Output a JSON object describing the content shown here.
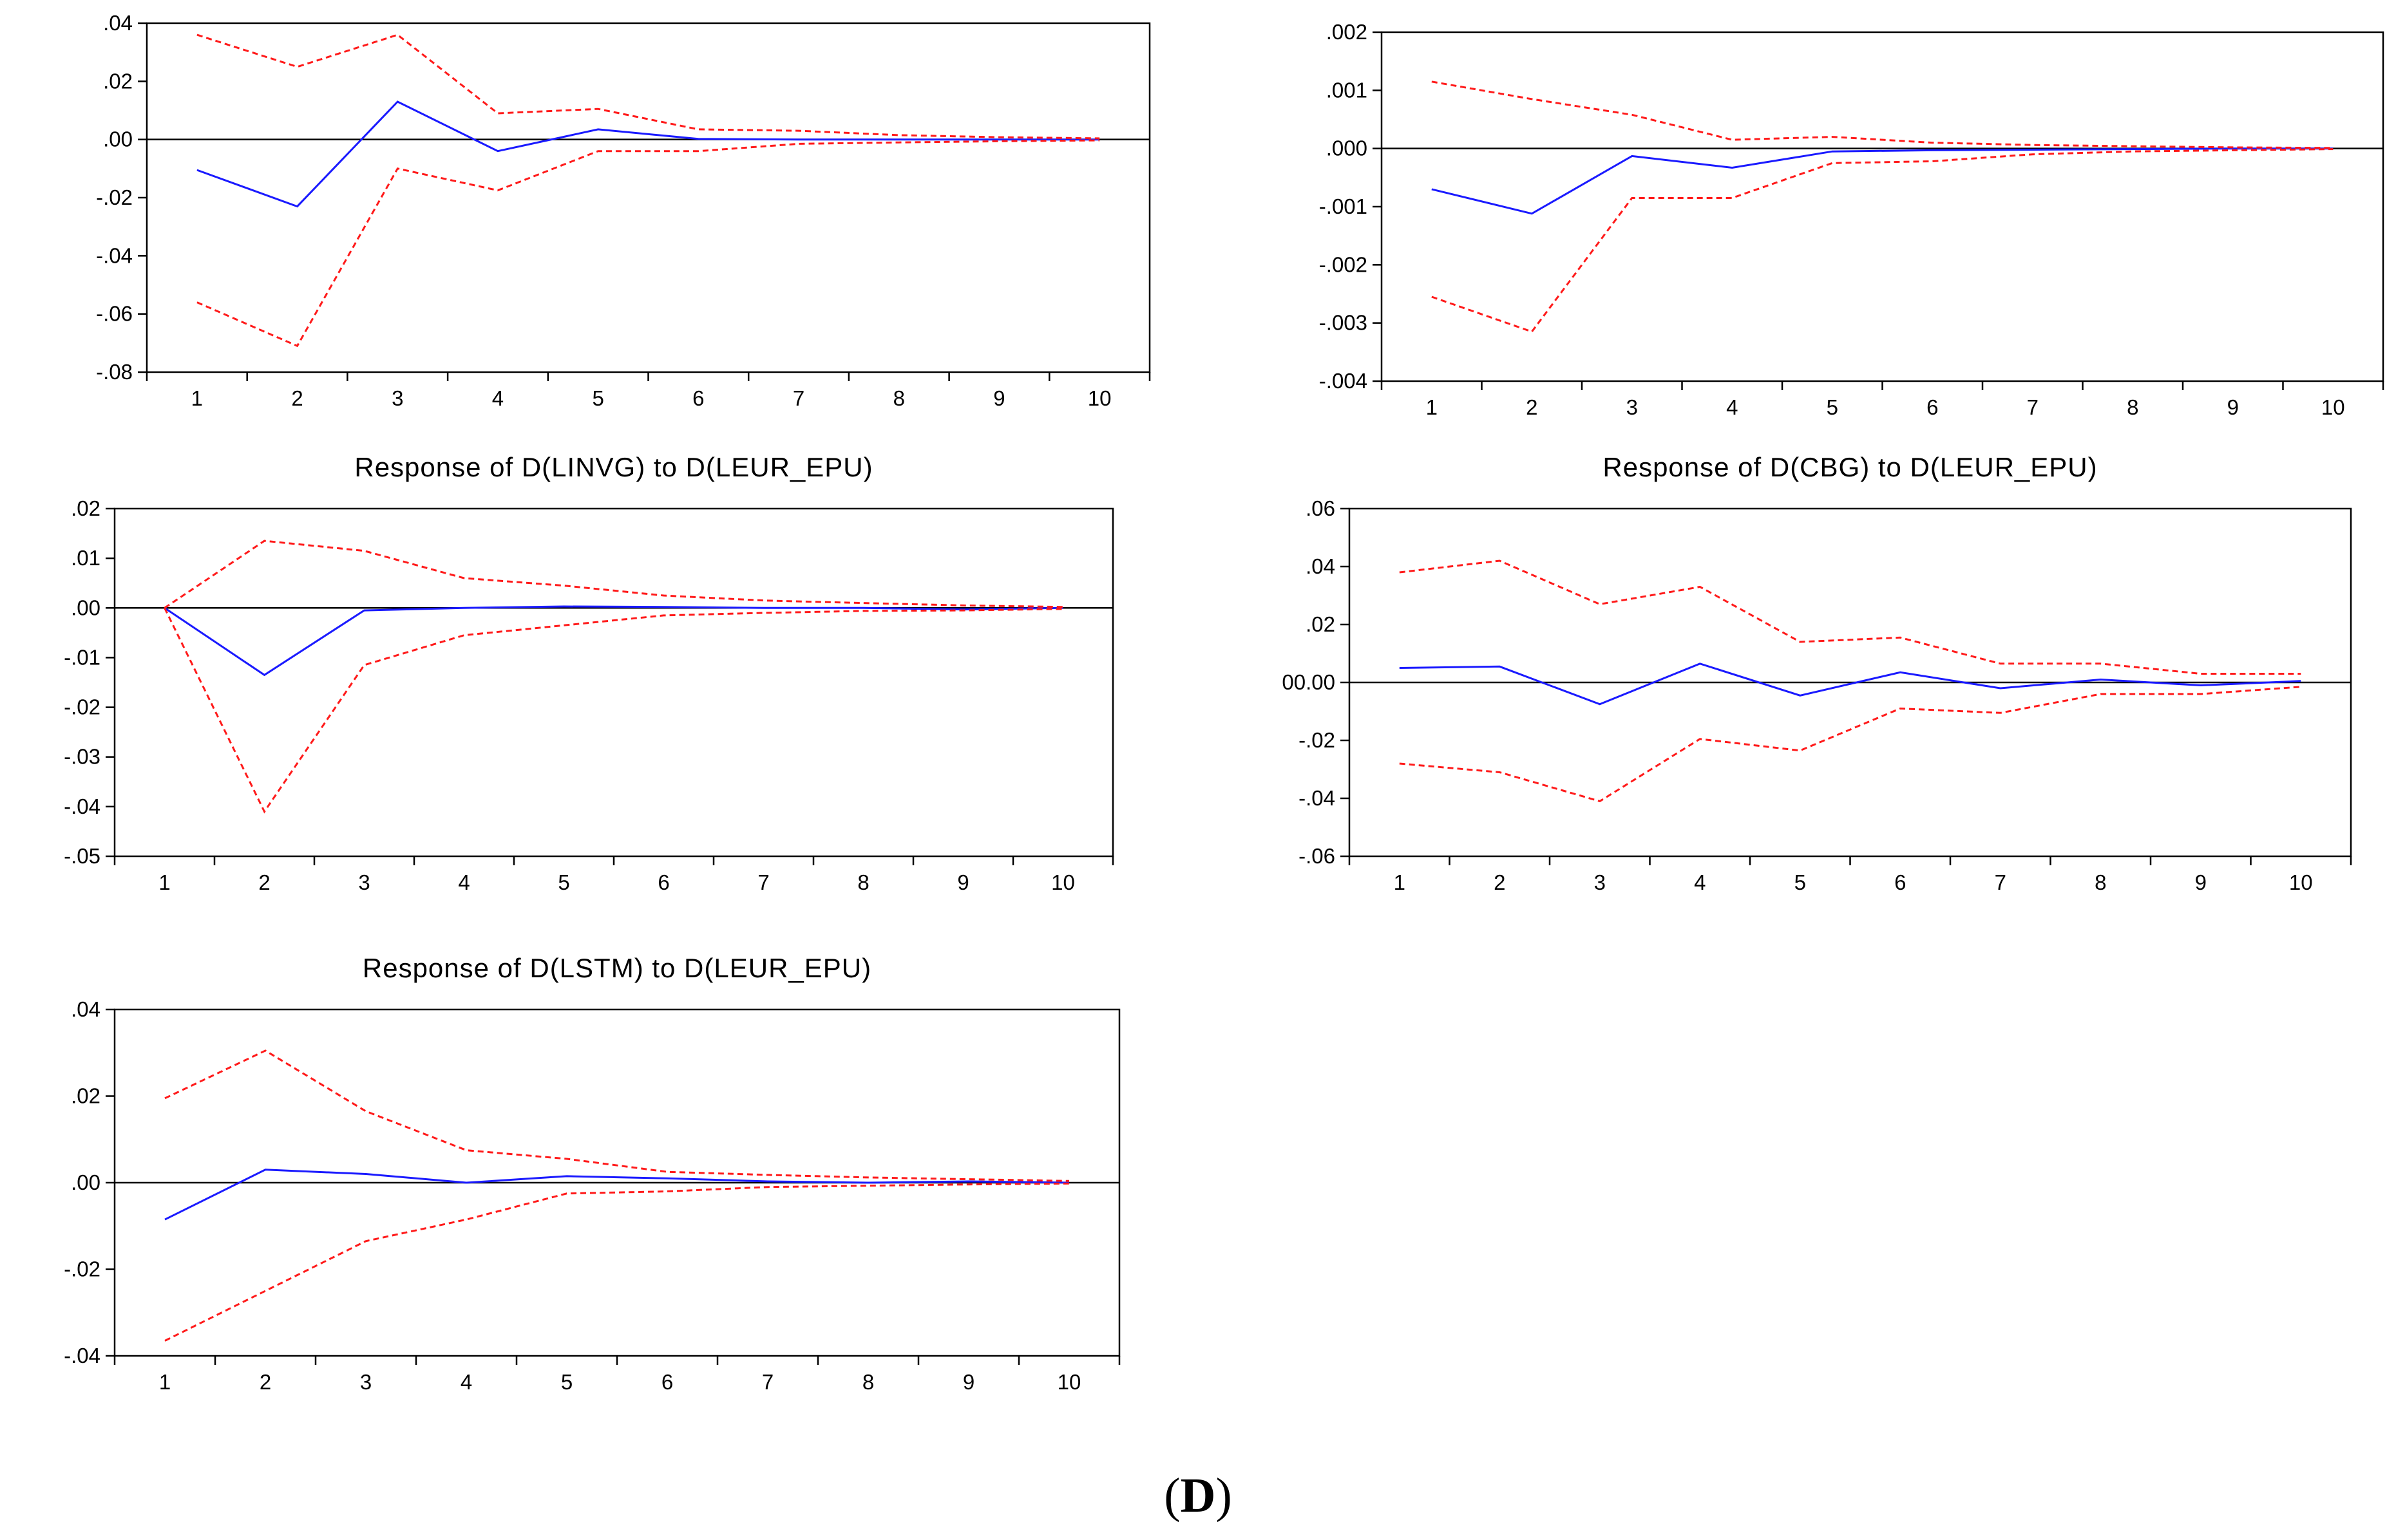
{
  "figure": {
    "label_open": "(",
    "label_letter": "D",
    "label_close": ")"
  },
  "colors": {
    "response": "#1a1aff",
    "band": "#ff1a1a",
    "axis": "#000000"
  },
  "chart_data": [
    {
      "id": "p1",
      "type": "line",
      "title": "",
      "x": [
        1,
        2,
        3,
        4,
        5,
        6,
        7,
        8,
        9,
        10
      ],
      "yticks": [
        ".04",
        ".02",
        ".00",
        "-.02",
        "-.04",
        "-.06",
        "-.08"
      ],
      "ylim": [
        -0.08,
        0.04
      ],
      "series": [
        {
          "name": "response",
          "style": "solid",
          "values": [
            -0.0105,
            -0.023,
            0.013,
            -0.004,
            0.0035,
            0.0002,
            0.0,
            0.0,
            0.0,
            0.0
          ]
        },
        {
          "name": "upper",
          "style": "dashed",
          "values": [
            0.036,
            0.025,
            0.036,
            0.009,
            0.0105,
            0.0035,
            0.003,
            0.0015,
            0.0008,
            0.0004
          ]
        },
        {
          "name": "lower",
          "style": "dashed",
          "values": [
            -0.056,
            -0.071,
            -0.01,
            -0.0175,
            -0.004,
            -0.004,
            -0.0015,
            -0.001,
            -0.0006,
            -0.0003
          ]
        }
      ]
    },
    {
      "id": "p2",
      "type": "line",
      "title": "",
      "x": [
        1,
        2,
        3,
        4,
        5,
        6,
        7,
        8,
        9,
        10
      ],
      "yticks": [
        ".002",
        ".001",
        ".000",
        "-.001",
        "-.002",
        "-.003",
        "-.004"
      ],
      "ylim": [
        -0.004,
        0.002
      ],
      "series": [
        {
          "name": "response",
          "style": "solid",
          "values": [
            -0.0007,
            -0.00112,
            -0.00013,
            -0.00033,
            -5e-05,
            -3e-05,
            -2e-05,
            -1e-05,
            0.0,
            0.0
          ]
        },
        {
          "name": "upper",
          "style": "dashed",
          "values": [
            0.00115,
            0.00085,
            0.00058,
            0.00015,
            0.0002,
            0.0001,
            6e-05,
            4e-05,
            2e-05,
            1e-05
          ]
        },
        {
          "name": "lower",
          "style": "dashed",
          "values": [
            -0.00255,
            -0.00315,
            -0.00085,
            -0.00085,
            -0.00025,
            -0.00022,
            -0.0001,
            -5e-05,
            -3e-05,
            -1e-05
          ]
        }
      ]
    },
    {
      "id": "p3",
      "type": "line",
      "title": "Response of D(LINVG) to D(LEUR_EPU)",
      "x": [
        1,
        2,
        3,
        4,
        5,
        6,
        7,
        8,
        9,
        10
      ],
      "yticks": [
        ".02",
        ".01",
        ".00",
        "-.01",
        "-.02",
        "-.03",
        "-.04",
        "-.05"
      ],
      "ylim": [
        -0.05,
        0.02
      ],
      "series": [
        {
          "name": "response",
          "style": "solid",
          "values": [
            0.0,
            -0.0135,
            -0.0005,
            0.0,
            0.0003,
            0.0002,
            0.0,
            0.0,
            -0.0003,
            0.0
          ]
        },
        {
          "name": "upper",
          "style": "dashed",
          "values": [
            0.0,
            0.0135,
            0.0115,
            0.006,
            0.0045,
            0.0025,
            0.0015,
            0.001,
            0.0005,
            0.0002
          ]
        },
        {
          "name": "lower",
          "style": "dashed",
          "values": [
            0.0,
            -0.041,
            -0.0115,
            -0.0055,
            -0.0035,
            -0.0015,
            -0.001,
            -0.0006,
            -0.0005,
            -0.0002
          ]
        }
      ]
    },
    {
      "id": "p4",
      "type": "line",
      "title": "Response of D(CBG) to D(LEUR_EPU)",
      "x": [
        1,
        2,
        3,
        4,
        5,
        6,
        7,
        8,
        9,
        10
      ],
      "yticks": [
        ".06",
        ".04",
        ".02",
        "00.00",
        "-.02",
        "-.04",
        "-.06"
      ],
      "ylim": [
        -0.06,
        0.06
      ],
      "series": [
        {
          "name": "response",
          "style": "solid",
          "values": [
            0.005,
            0.0055,
            -0.0075,
            0.0065,
            -0.0045,
            0.0035,
            -0.002,
            0.001,
            -0.001,
            0.0005
          ]
        },
        {
          "name": "upper",
          "style": "dashed",
          "values": [
            0.038,
            0.042,
            0.027,
            0.033,
            0.014,
            0.0155,
            0.0065,
            0.0065,
            0.003,
            0.003
          ]
        },
        {
          "name": "lower",
          "style": "dashed",
          "values": [
            -0.028,
            -0.031,
            -0.041,
            -0.0195,
            -0.0235,
            -0.009,
            -0.0105,
            -0.004,
            -0.004,
            -0.0015
          ]
        }
      ]
    },
    {
      "id": "p5",
      "type": "line",
      "title": "Response of D(LSTM) to D(LEUR_EPU)",
      "x": [
        1,
        2,
        3,
        4,
        5,
        6,
        7,
        8,
        9,
        10
      ],
      "yticks": [
        ".04",
        ".02",
        ".00",
        "-.02",
        "-.04"
      ],
      "ylim": [
        -0.04,
        0.04
      ],
      "series": [
        {
          "name": "response",
          "style": "solid",
          "values": [
            -0.0085,
            0.003,
            0.002,
            0.0,
            0.0015,
            0.001,
            0.0003,
            0.0,
            0.0003,
            0.0
          ]
        },
        {
          "name": "upper",
          "style": "dashed",
          "values": [
            0.0195,
            0.0305,
            0.0165,
            0.0075,
            0.0055,
            0.0025,
            0.0018,
            0.0012,
            0.0008,
            0.0004
          ]
        },
        {
          "name": "lower",
          "style": "dashed",
          "values": [
            -0.0365,
            -0.025,
            -0.0135,
            -0.0085,
            -0.0025,
            -0.002,
            -0.001,
            -0.0007,
            -0.0004,
            -0.0002
          ]
        }
      ]
    }
  ]
}
